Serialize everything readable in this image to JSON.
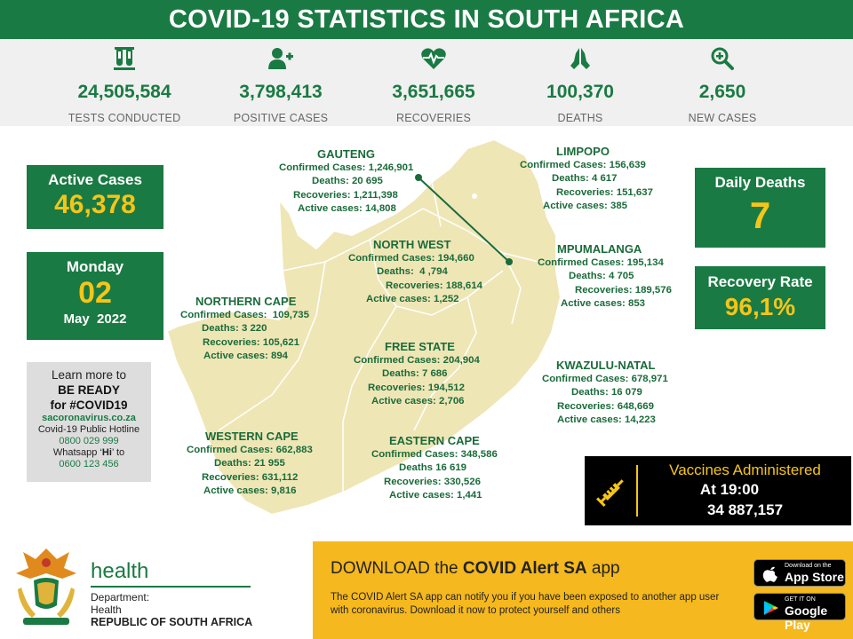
{
  "header": {
    "title": "COVID-19 STATISTICS IN SOUTH AFRICA"
  },
  "stats": [
    {
      "icon": "test-tubes-icon",
      "value": "24,505,584",
      "label": "TESTS CONDUCTED"
    },
    {
      "icon": "add-person-icon",
      "value": "3,798,413",
      "label": "POSITIVE CASES"
    },
    {
      "icon": "heartbeat-icon",
      "value": "3,651,665",
      "label": "RECOVERIES"
    },
    {
      "icon": "praying-hands-icon",
      "value": "100,370",
      "label": "DEATHS"
    },
    {
      "icon": "magnifier-plus-icon",
      "value": "2,650",
      "label": "NEW CASES"
    }
  ],
  "active_cases": {
    "label": "Active Cases",
    "value": "46,378"
  },
  "date": {
    "weekday": "Monday",
    "day": "02",
    "month_year": "May  2022"
  },
  "learn": {
    "line1": "Learn more to",
    "line2": "BE READY",
    "line3": "for #COVID19",
    "site": "sacoronavirus.co.za",
    "hotline_label": "Covid-19 Public Hotline",
    "hotline": "0800 029 999",
    "whatsapp_pre": "Whatsapp ‘",
    "whatsapp_hi": "Hi",
    "whatsapp_post": "’ to",
    "whatsapp_number": "0600 123 456"
  },
  "daily_deaths": {
    "label": "Daily Deaths",
    "value": "7"
  },
  "recovery_rate": {
    "label": "Recovery Rate",
    "value": "96,1%"
  },
  "provinces": {
    "gauteng": {
      "name": "GAUTENG",
      "l1": "Confirmed Cases: 1,246,901",
      "l2": "Deaths: 20 695",
      "l3": "Recoveries: 1,211,398",
      "l4": "Active cases: 14,808"
    },
    "limpopo": {
      "name": "LIMPOPO",
      "l1": "Confirmed Cases: 156,639",
      "l2": "Deaths: 4 617",
      "l3": "Recoveries: 151,637",
      "l4": "Active cases: 385"
    },
    "north_west": {
      "name": "NORTH WEST",
      "l1": "Confirmed Cases: 194,660",
      "l2": "Deaths:  4 ,794",
      "l3": "Recoveries: 188,614",
      "l4": "Active cases: 1,252"
    },
    "mpumalanga": {
      "name": "MPUMALANGA",
      "l1": "Confirmed Cases: 195,134",
      "l2": "Deaths: 4 705",
      "l3": "Recoveries: 189,576",
      "l4": "Active cases: 853"
    },
    "northern_cape": {
      "name": "NORTHERN CAPE",
      "l1": "Confirmed Cases:  109,735",
      "l2": "Deaths: 3 220",
      "l3": "Recoveries: 105,621",
      "l4": "Active cases: 894"
    },
    "free_state": {
      "name": "FREE STATE",
      "l1": "Confirmed Cases: 204,904",
      "l2": "Deaths: 7 686",
      "l3": "Recoveries: 194,512",
      "l4": "Active cases: 2,706"
    },
    "kwazulu_natal": {
      "name": "KWAZULU-NATAL",
      "l1": "Confirmed Cases: 678,971",
      "l2": "Deaths: 16 079",
      "l3": "Recoveries: 648,669",
      "l4": "Active cases: 14,223"
    },
    "western_cape": {
      "name": "WESTERN CAPE",
      "l1": "Confirmed Cases: 662,883",
      "l2": "Deaths: 21 955",
      "l3": "Recoveries: 631,112",
      "l4": "Active cases: 9,816"
    },
    "eastern_cape": {
      "name": "EASTERN CAPE",
      "l1": "Confirmed Cases: 348,586",
      "l2": "Deaths 16 619",
      "l3": "Recoveries: 330,526",
      "l4": "Active cases: 1,441"
    }
  },
  "vaccines": {
    "title": "Vaccines Administered",
    "at": "At 19:00",
    "value": "34 887,157"
  },
  "department": {
    "brand": "health",
    "line1": "Department:",
    "line2": "Health",
    "line3": "REPUBLIC OF SOUTH AFRICA"
  },
  "app_banner": {
    "title_pre": "DOWNLOAD the ",
    "title_bold": "COVID Alert SA",
    "title_post": " app",
    "body": "The COVID Alert SA app can notify you if you have been exposed to another app user with coronavirus. Download it now to protect yourself and others"
  },
  "stores": {
    "apple_small": "Download on the",
    "apple_big": "App Store",
    "google_small": "GET IT ON",
    "google_big": "Google Play"
  },
  "colors": {
    "primary_green": "#1a7a43",
    "accent_yellow": "#f5c518",
    "banner_yellow": "#f5b81e",
    "map_fill": "#efe6b6"
  }
}
